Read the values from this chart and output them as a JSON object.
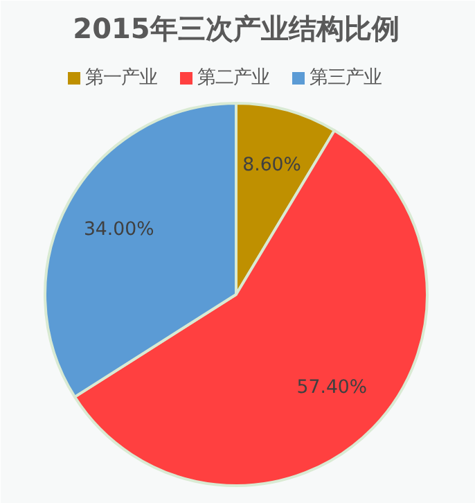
{
  "chart_data": {
    "type": "pie",
    "title": "2015年三次产业结构比例",
    "categories": [
      "第一产业",
      "第二产业",
      "第三产业"
    ],
    "values": [
      8.6,
      57.4,
      34.0
    ],
    "colors": [
      "#bf9000",
      "#ff4040",
      "#5b9bd5"
    ],
    "value_labels": [
      "8.60%",
      "57.40%",
      "34.00%"
    ],
    "legend": "top"
  }
}
